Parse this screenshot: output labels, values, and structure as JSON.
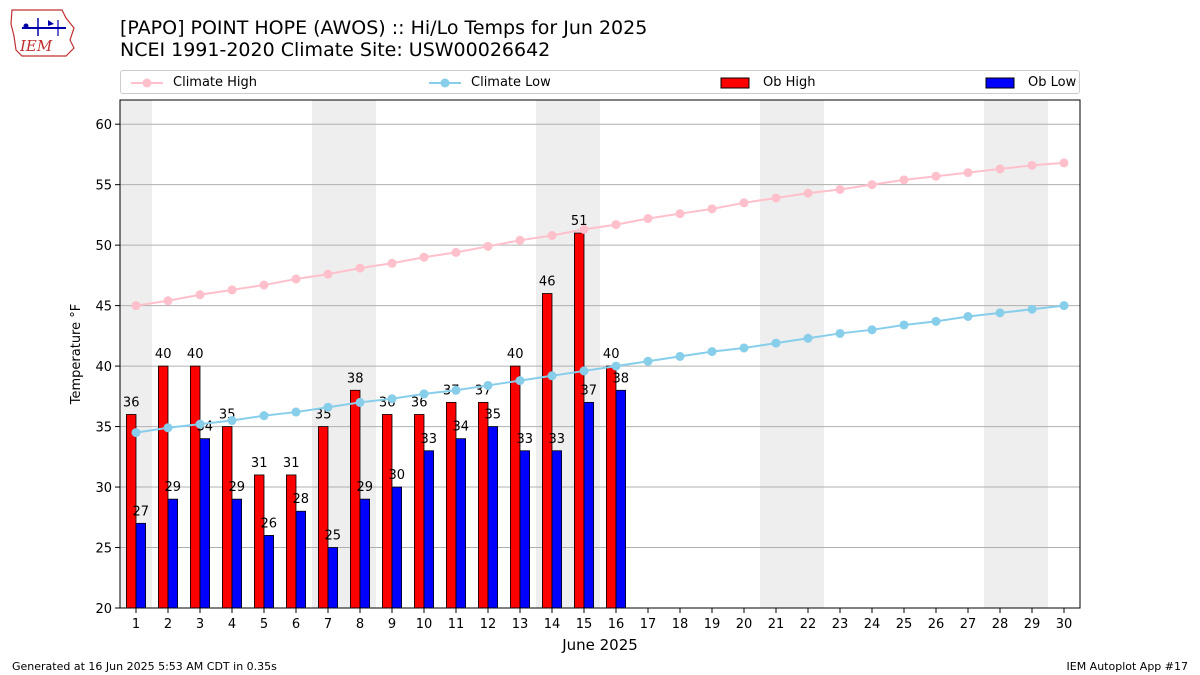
{
  "header": {
    "title_line1": "[PAPO] POINT HOPE (AWOS) :: Hi/Lo Temps for Jun 2025",
    "title_line2": "NCEI 1991-2020 Climate Site: USW00026642"
  },
  "logo": {
    "text": "IEM"
  },
  "footer": {
    "generated": "Generated at 16 Jun 2025 5:53 AM CDT in 0.35s",
    "app": "IEM Autoplot App #17"
  },
  "legend": [
    {
      "label": "Climate High",
      "kind": "line",
      "color": "#ffc0cb"
    },
    {
      "label": "Climate Low",
      "kind": "line",
      "color": "#87ceeb"
    },
    {
      "label": "Ob High",
      "kind": "bar",
      "color": "#ff0000"
    },
    {
      "label": "Ob Low",
      "kind": "bar",
      "color": "#0000ff"
    }
  ],
  "chart_data": {
    "type": "bar",
    "xlabel": "June 2025",
    "ylabel": "Temperature °F",
    "ylim": [
      20,
      62
    ],
    "yticks": [
      20,
      25,
      30,
      35,
      40,
      45,
      50,
      55,
      60
    ],
    "days": [
      1,
      2,
      3,
      4,
      5,
      6,
      7,
      8,
      9,
      10,
      11,
      12,
      13,
      14,
      15,
      16,
      17,
      18,
      19,
      20,
      21,
      22,
      23,
      24,
      25,
      26,
      27,
      28,
      29,
      30
    ],
    "weekend_day_ranges": [
      [
        1,
        1
      ],
      [
        7,
        8
      ],
      [
        14,
        15
      ],
      [
        21,
        22
      ],
      [
        28,
        29
      ]
    ],
    "ob_high": [
      36,
      40,
      40,
      35,
      31,
      31,
      35,
      38,
      36,
      36,
      37,
      37,
      40,
      46,
      51,
      40
    ],
    "ob_low": [
      27,
      29,
      34,
      29,
      26,
      28,
      25,
      29,
      30,
      33,
      34,
      35,
      33,
      33,
      37,
      38
    ],
    "climate_high": [
      45.0,
      45.4,
      45.9,
      46.3,
      46.7,
      47.2,
      47.6,
      48.1,
      48.5,
      49.0,
      49.4,
      49.9,
      50.4,
      50.8,
      51.3,
      51.7,
      52.2,
      52.6,
      53.0,
      53.5,
      53.9,
      54.3,
      54.6,
      55.0,
      55.4,
      55.7,
      56.0,
      56.3,
      56.6,
      56.8
    ],
    "climate_low": [
      34.5,
      34.9,
      35.2,
      35.5,
      35.9,
      36.2,
      36.6,
      37.0,
      37.3,
      37.7,
      38.0,
      38.4,
      38.8,
      39.2,
      39.6,
      40.0,
      40.4,
      40.8,
      41.2,
      41.5,
      41.9,
      42.3,
      42.7,
      43.0,
      43.4,
      43.7,
      44.1,
      44.4,
      44.7,
      45.0
    ],
    "colors": {
      "ob_high": "#ff0000",
      "ob_low": "#0000ff",
      "climate_high": "#ffc0cb",
      "climate_low": "#87ceeb",
      "weekend_band": "#eeeeee",
      "grid": "#b0b0b0"
    },
    "grid": true
  }
}
